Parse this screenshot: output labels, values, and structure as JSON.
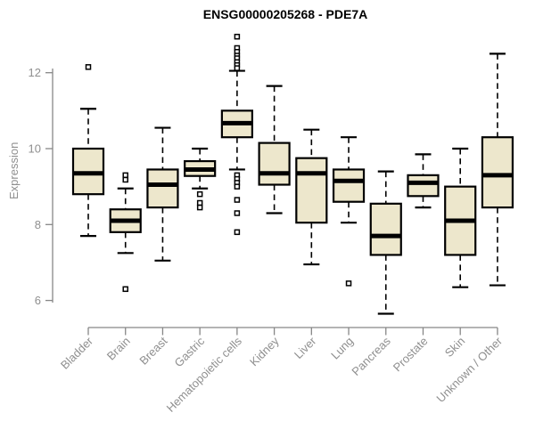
{
  "chart_data": {
    "type": "boxplot",
    "title": "ENSG00000205268 - PDE7A",
    "ylabel": "Expression",
    "xlabel": "",
    "ylim": [
      5.5,
      13.1
    ],
    "yticks": [
      6,
      8,
      10,
      12
    ],
    "grid": false,
    "legend_position": "none",
    "categories": [
      "Bladder",
      "Brain",
      "Breast",
      "Gastric",
      "Hematopoietic cells",
      "Kidney",
      "Liver",
      "Lung",
      "Pancreas",
      "Prostate",
      "Skin",
      "Unknown / Other"
    ],
    "series": [
      {
        "name": "Bladder",
        "whisker_low": 7.7,
        "q1": 8.8,
        "median": 9.35,
        "q3": 10.0,
        "whisker_high": 11.05,
        "outliers": [
          12.15
        ]
      },
      {
        "name": "Brain",
        "whisker_low": 7.25,
        "q1": 7.8,
        "median": 8.1,
        "q3": 8.4,
        "whisker_high": 8.95,
        "outliers": [
          9.3,
          9.18,
          6.3
        ]
      },
      {
        "name": "Breast",
        "whisker_low": 7.05,
        "q1": 8.45,
        "median": 9.05,
        "q3": 9.45,
        "whisker_high": 10.55,
        "outliers": []
      },
      {
        "name": "Gastric",
        "whisker_low": 8.95,
        "q1": 9.28,
        "median": 9.45,
        "q3": 9.67,
        "whisker_high": 10.0,
        "outliers": [
          8.8,
          8.57,
          8.45
        ]
      },
      {
        "name": "Hematopoietic cells",
        "whisker_low": 9.45,
        "q1": 10.3,
        "median": 10.67,
        "q3": 11.0,
        "whisker_high": 12.05,
        "outliers": [
          12.95,
          12.65,
          12.55,
          12.45,
          12.38,
          12.28,
          12.2,
          12.12,
          9.3,
          9.2,
          9.1,
          9.0,
          8.65,
          8.3,
          7.8
        ]
      },
      {
        "name": "Kidney",
        "whisker_low": 8.3,
        "q1": 9.05,
        "median": 9.35,
        "q3": 10.15,
        "whisker_high": 11.65,
        "outliers": []
      },
      {
        "name": "Liver",
        "whisker_low": 6.95,
        "q1": 8.05,
        "median": 9.35,
        "q3": 9.75,
        "whisker_high": 10.5,
        "outliers": []
      },
      {
        "name": "Lung",
        "whisker_low": 8.05,
        "q1": 8.6,
        "median": 9.15,
        "q3": 9.45,
        "whisker_high": 10.3,
        "outliers": [
          6.45
        ]
      },
      {
        "name": "Pancreas",
        "whisker_low": 5.65,
        "q1": 7.2,
        "median": 7.7,
        "q3": 8.55,
        "whisker_high": 9.4,
        "outliers": []
      },
      {
        "name": "Prostate",
        "whisker_low": 8.45,
        "q1": 8.75,
        "median": 9.1,
        "q3": 9.3,
        "whisker_high": 9.85,
        "outliers": []
      },
      {
        "name": "Skin",
        "whisker_low": 6.35,
        "q1": 7.2,
        "median": 8.1,
        "q3": 9.0,
        "whisker_high": 10.0,
        "outliers": []
      },
      {
        "name": "Unknown / Other",
        "whisker_low": 6.4,
        "q1": 8.45,
        "median": 9.3,
        "q3": 10.3,
        "whisker_high": 12.5,
        "outliers": []
      }
    ],
    "style": {
      "box_fill": "#EDE7CC",
      "box_stroke": "#000000",
      "median_color": "#000000",
      "whisker_style": "dashed",
      "outlier_shape": "open-square",
      "axis_color": "#878787",
      "tick_label_color": "#8f8f8f",
      "title_color": "#000000"
    }
  }
}
